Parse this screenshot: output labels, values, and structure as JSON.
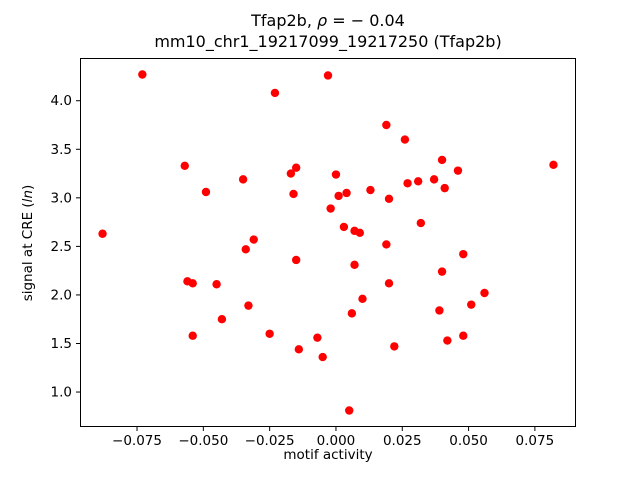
{
  "chart_data": {
    "type": "scatter",
    "title_line1": "Tfap2b, ρ = − 0.04",
    "title_line1_prefix": "Tfap2b, ",
    "title_line1_rho": "ρ",
    "title_line1_suffix": " = − 0.04",
    "title_line2": "mm10_chr1_19217099_19217250 (Tfap2b)",
    "xlabel": "motif activity",
    "ylabel_prefix": "signal at CRE (",
    "ylabel_italic": "ln",
    "ylabel_suffix": ")",
    "xlim": [
      -0.0965,
      0.0905
    ],
    "ylim": [
      0.64,
      4.44
    ],
    "x_tick_values": [
      -0.075,
      -0.05,
      -0.025,
      0.0,
      0.025,
      0.05,
      0.075
    ],
    "x_tick_labels": [
      "−0.075",
      "−0.050",
      "−0.025",
      "0.000",
      "0.025",
      "0.050",
      "0.075"
    ],
    "y_tick_values": [
      1.0,
      1.5,
      2.0,
      2.5,
      3.0,
      3.5,
      4.0
    ],
    "y_tick_labels": [
      "1.0",
      "1.5",
      "2.0",
      "2.5",
      "3.0",
      "3.5",
      "4.0"
    ],
    "grid": false,
    "legend": "none",
    "point_color": "#ff0000",
    "axis_color": "#000000",
    "points": [
      [
        -0.088,
        2.63
      ],
      [
        -0.073,
        4.27
      ],
      [
        -0.057,
        3.33
      ],
      [
        -0.056,
        2.14
      ],
      [
        -0.054,
        2.12
      ],
      [
        -0.054,
        1.58
      ],
      [
        -0.049,
        3.06
      ],
      [
        -0.045,
        2.11
      ],
      [
        -0.043,
        1.75
      ],
      [
        -0.035,
        3.19
      ],
      [
        -0.034,
        2.47
      ],
      [
        -0.031,
        2.57
      ],
      [
        -0.033,
        1.89
      ],
      [
        -0.025,
        1.6
      ],
      [
        -0.023,
        4.08
      ],
      [
        -0.017,
        3.25
      ],
      [
        -0.015,
        3.31
      ],
      [
        -0.016,
        3.04
      ],
      [
        -0.015,
        2.36
      ],
      [
        -0.014,
        1.44
      ],
      [
        -0.007,
        1.56
      ],
      [
        -0.005,
        1.36
      ],
      [
        -0.003,
        4.26
      ],
      [
        -0.002,
        2.89
      ],
      [
        0.0,
        3.24
      ],
      [
        0.001,
        3.02
      ],
      [
        0.004,
        3.05
      ],
      [
        0.003,
        2.7
      ],
      [
        0.007,
        2.66
      ],
      [
        0.009,
        2.64
      ],
      [
        0.007,
        2.31
      ],
      [
        0.01,
        1.96
      ],
      [
        0.006,
        1.81
      ],
      [
        0.005,
        0.81
      ],
      [
        0.013,
        3.08
      ],
      [
        0.019,
        3.75
      ],
      [
        0.02,
        2.99
      ],
      [
        0.019,
        2.52
      ],
      [
        0.02,
        2.12
      ],
      [
        0.022,
        1.47
      ],
      [
        0.026,
        3.6
      ],
      [
        0.027,
        3.15
      ],
      [
        0.031,
        3.17
      ],
      [
        0.032,
        2.74
      ],
      [
        0.037,
        3.19
      ],
      [
        0.04,
        3.39
      ],
      [
        0.041,
        3.1
      ],
      [
        0.04,
        2.24
      ],
      [
        0.039,
        1.84
      ],
      [
        0.042,
        1.53
      ],
      [
        0.046,
        3.28
      ],
      [
        0.048,
        2.42
      ],
      [
        0.048,
        1.58
      ],
      [
        0.051,
        1.9
      ],
      [
        0.056,
        2.02
      ],
      [
        0.082,
        3.34
      ]
    ]
  }
}
